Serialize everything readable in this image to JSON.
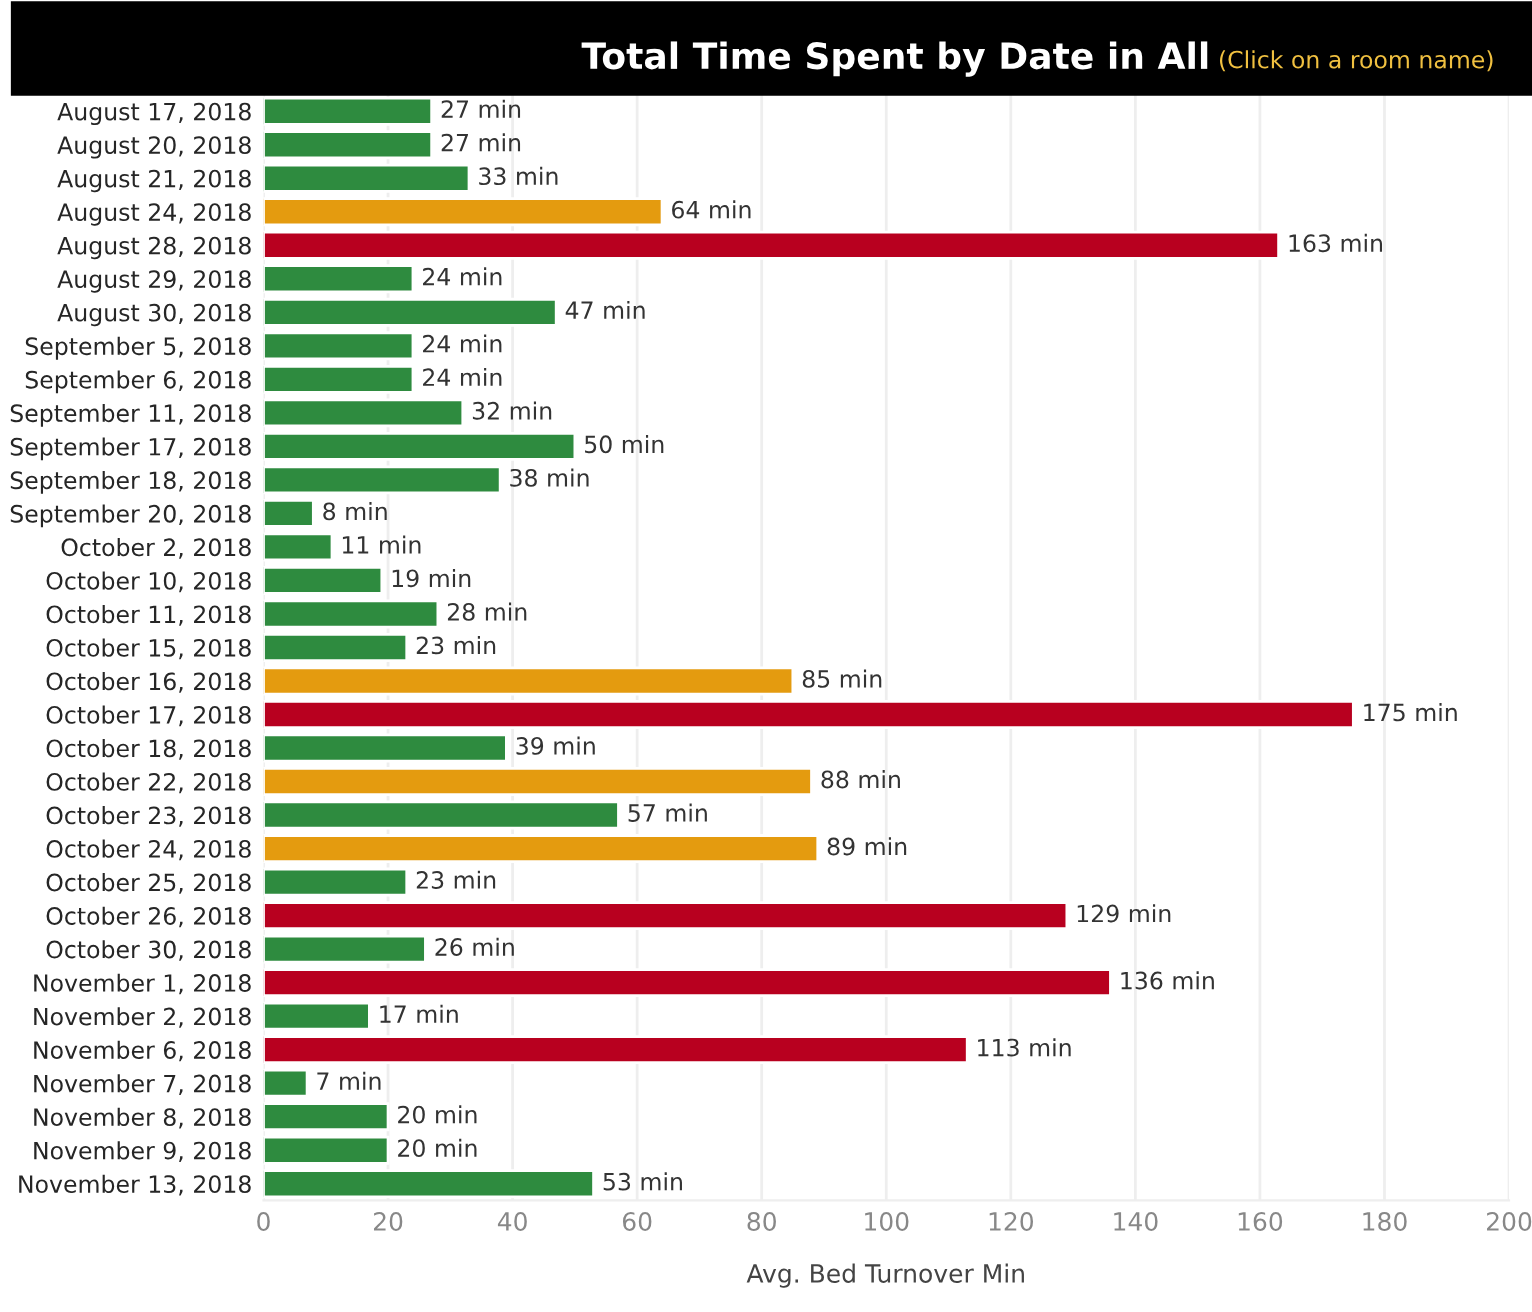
{
  "chart_data": {
    "type": "bar",
    "orientation": "horizontal",
    "title": "Total Time Spent by Date in All",
    "subtitle": "(Click on a room name)",
    "xlabel": "Avg. Bed Turnover Min",
    "categories": [
      "August 17, 2018",
      "August 20, 2018",
      "August 21, 2018",
      "August 24, 2018",
      "August 28, 2018",
      "August 29, 2018",
      "August 30, 2018",
      "September 5, 2018",
      "September 6, 2018",
      "September 11, 2018",
      "September 17, 2018",
      "September 18, 2018",
      "September 20, 2018",
      "October 2, 2018",
      "October 10, 2018",
      "October 11, 2018",
      "October 15, 2018",
      "October 16, 2018",
      "October 17, 2018",
      "October 18, 2018",
      "October 22, 2018",
      "October 23, 2018",
      "October 24, 2018",
      "October 25, 2018",
      "October 26, 2018",
      "October 30, 2018",
      "November 1, 2018",
      "November 2, 2018",
      "November 6, 2018",
      "November 7, 2018",
      "November 8, 2018",
      "November 9, 2018",
      "November 13, 2018"
    ],
    "values": [
      27,
      27,
      33,
      64,
      163,
      24,
      47,
      24,
      24,
      32,
      50,
      38,
      8,
      11,
      19,
      28,
      23,
      85,
      175,
      39,
      88,
      57,
      89,
      23,
      129,
      26,
      136,
      17,
      113,
      7,
      20,
      20,
      53
    ],
    "value_labels": [
      "27 min",
      "27 min",
      "33 min",
      "64 min",
      "163 min",
      "24 min",
      "47 min",
      "24 min",
      "24 min",
      "32 min",
      "50 min",
      "38 min",
      "8 min",
      "11 min",
      "19 min",
      "28 min",
      "23 min",
      "85 min",
      "175 min",
      "39 min",
      "88 min",
      "57 min",
      "89 min",
      "23 min",
      "129 min",
      "26 min",
      "136 min",
      "17 min",
      "113 min",
      "7 min",
      "20 min",
      "20 min",
      "53 min"
    ],
    "colors": [
      "#2e8b3f",
      "#2e8b3f",
      "#2e8b3f",
      "#e49b0f",
      "#b8001f",
      "#2e8b3f",
      "#2e8b3f",
      "#2e8b3f",
      "#2e8b3f",
      "#2e8b3f",
      "#2e8b3f",
      "#2e8b3f",
      "#2e8b3f",
      "#2e8b3f",
      "#2e8b3f",
      "#2e8b3f",
      "#2e8b3f",
      "#e49b0f",
      "#b8001f",
      "#2e8b3f",
      "#e49b0f",
      "#2e8b3f",
      "#e49b0f",
      "#2e8b3f",
      "#b8001f",
      "#2e8b3f",
      "#b8001f",
      "#2e8b3f",
      "#b8001f",
      "#2e8b3f",
      "#2e8b3f",
      "#2e8b3f",
      "#2e8b3f"
    ],
    "xlim": [
      0,
      200
    ],
    "xticks": [
      0,
      20,
      40,
      60,
      80,
      100,
      120,
      140,
      160,
      180,
      200
    ],
    "grid": "x",
    "legend": false
  }
}
